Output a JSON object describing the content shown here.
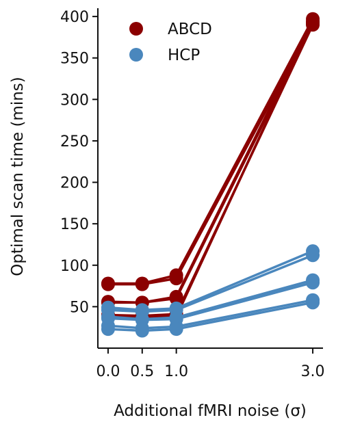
{
  "chart_data": {
    "type": "line",
    "title": "",
    "xlabel": "Additional fMRI noise (σ)",
    "ylabel": "Optimal scan time (mins)",
    "x": [
      0.0,
      0.5,
      1.0,
      3.0
    ],
    "x_tick_labels": [
      "0.0",
      "0.5",
      "1.0",
      "3.0"
    ],
    "y_ticks": [
      50,
      100,
      150,
      200,
      250,
      300,
      350,
      400
    ],
    "ylim": [
      0,
      410
    ],
    "xlim": [
      -0.15,
      3.15
    ],
    "legend": {
      "placement": "top-left",
      "entries": [
        {
          "label": "ABCD",
          "color": "#8b0000"
        },
        {
          "label": "HCP",
          "color": "#4a87bd"
        }
      ]
    },
    "groups": [
      {
        "key": "ABCD",
        "color": "#8b0000",
        "lines": [
          [
            77,
            77,
            84,
            392
          ],
          [
            78,
            78,
            88,
            397
          ],
          [
            55,
            55,
            60,
            391
          ],
          [
            56,
            55,
            62,
            394
          ],
          [
            40,
            39,
            41,
            390
          ],
          [
            37,
            37,
            38,
            393
          ]
        ]
      },
      {
        "key": "HCP",
        "color": "#4a87bd",
        "lines": [
          [
            49,
            46,
            48,
            117
          ],
          [
            46,
            44,
            46,
            112
          ],
          [
            38,
            35,
            37,
            82
          ],
          [
            36,
            34,
            35,
            79
          ],
          [
            27,
            24,
            26,
            58
          ],
          [
            23,
            21,
            23,
            55
          ]
        ]
      }
    ]
  }
}
